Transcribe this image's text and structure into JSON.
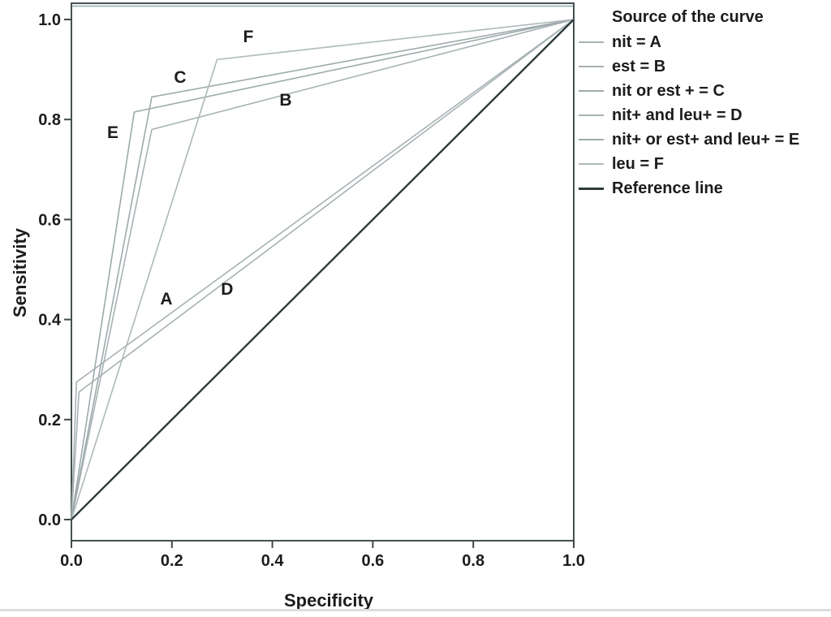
{
  "colors": {
    "background": "#ffffff",
    "frame": "#46514f",
    "frame_accent": "#a4bebe",
    "tick": "#3f4a48",
    "text": "#1c1c1c",
    "curve_light": "#a7b2b4",
    "reference": "#2c3c3a"
  },
  "legend": {
    "title": "Source of the curve"
  },
  "chart_data": {
    "type": "line",
    "title": "",
    "xlabel": "Specificity",
    "ylabel": "Sensitivity",
    "xlim": [
      0,
      1
    ],
    "ylim": [
      0,
      1
    ],
    "grid": false,
    "legend_position": "right-outside",
    "xticks": {
      "values": [
        0,
        0.2,
        0.4,
        0.6,
        0.8,
        1.0
      ],
      "labels": [
        "0.0",
        "0.2",
        "0.4",
        "0.6",
        "0.8",
        "1.0"
      ]
    },
    "yticks": {
      "values": [
        0,
        0.2,
        0.4,
        0.6,
        0.8,
        1.0
      ],
      "labels": [
        "0.0",
        "0.2",
        "0.4",
        "0.6",
        "0.8",
        "1.0"
      ]
    },
    "series": [
      {
        "name": "nit = A",
        "label": "A",
        "color": "#a7b2b4",
        "width": 1.6,
        "points": [
          [
            0,
            0
          ],
          [
            0.01,
            0.275
          ],
          [
            1,
            1
          ]
        ],
        "label_pos": [
          0.189,
          0.4415
        ]
      },
      {
        "name": "est = B",
        "label": "B",
        "color": "#a7b2b4",
        "width": 1.6,
        "points": [
          [
            0,
            0
          ],
          [
            0.16,
            0.78
          ],
          [
            1,
            1
          ]
        ],
        "label_pos": [
          0.4265,
          0.839
        ]
      },
      {
        "name": "nit or est + = C",
        "label": "C",
        "color": "#9daaab",
        "width": 1.6,
        "points": [
          [
            0,
            0
          ],
          [
            0.16,
            0.845
          ],
          [
            1,
            1
          ]
        ],
        "label_pos": [
          0.2165,
          0.885
        ]
      },
      {
        "name": "nit+ and leu+ = D",
        "label": "D",
        "color": "#a7b2b4",
        "width": 1.6,
        "points": [
          [
            0,
            0
          ],
          [
            0.015,
            0.255
          ],
          [
            1,
            1
          ]
        ],
        "label_pos": [
          0.31,
          0.461
        ]
      },
      {
        "name": "nit+ or est+ and leu+ = E",
        "label": "E",
        "color": "#9daaab",
        "width": 1.6,
        "points": [
          [
            0,
            0
          ],
          [
            0.125,
            0.815
          ],
          [
            1,
            1
          ]
        ],
        "label_pos": [
          0.0824,
          0.774
        ]
      },
      {
        "name": "leu = F",
        "label": "F",
        "color": "#aeb9ba",
        "width": 1.6,
        "points": [
          [
            0,
            0
          ],
          [
            0.29,
            0.92
          ],
          [
            1,
            1
          ]
        ],
        "label_pos": [
          0.352,
          0.966
        ]
      },
      {
        "name": "Reference line",
        "label": "",
        "color": "#2c3c3a",
        "width": 2.4,
        "points": [
          [
            0,
            0
          ],
          [
            1,
            1
          ]
        ]
      }
    ]
  }
}
